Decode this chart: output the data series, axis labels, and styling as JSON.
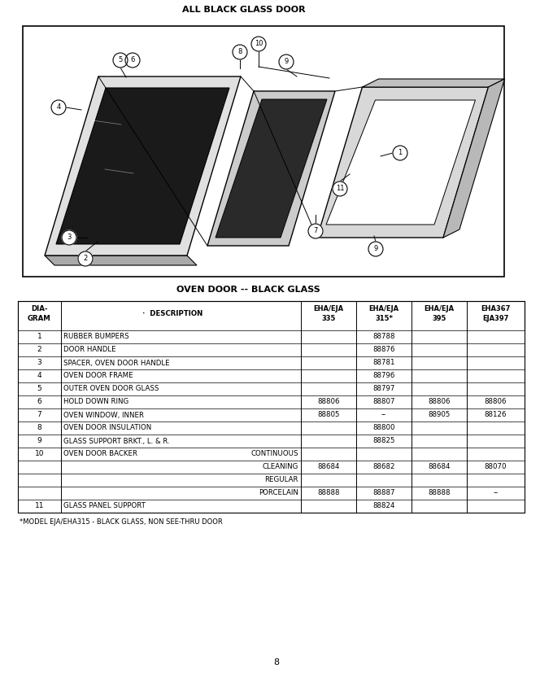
{
  "title_top": "ALL BLACK GLASS DOOR",
  "title_table": "OVEN DOOR -- BLACK GLASS",
  "page_number": "8",
  "footnote": "*MODEL EJA/EHA315 - BLACK GLASS, NON SEE-THRU DOOR",
  "table_headers_line1": [
    "DIA-",
    "",
    "EHA/EJA",
    "EHA/EJA",
    "EHA/EJA",
    "EHA367"
  ],
  "table_headers_line2": [
    "GRAM",
    "DESCRIPTION",
    "335",
    "315*",
    "395",
    "EJA397"
  ],
  "table_rows": [
    {
      "num": "1",
      "desc": "RUBBER BUMPERS",
      "sub": "",
      "c335": "",
      "c315": "88788",
      "c395": "",
      "c367": ""
    },
    {
      "num": "2",
      "desc": "DOOR HANDLE",
      "sub": "",
      "c335": "",
      "c315": "88876",
      "c395": "",
      "c367": ""
    },
    {
      "num": "3",
      "desc": "SPACER, OVEN DOOR HANDLE",
      "sub": "",
      "c335": "",
      "c315": "88781",
      "c395": "",
      "c367": ""
    },
    {
      "num": "4",
      "desc": "OVEN DOOR FRAME",
      "sub": "",
      "c335": "",
      "c315": "88796",
      "c395": "",
      "c367": ""
    },
    {
      "num": "5",
      "desc": "OUTER OVEN DOOR GLASS",
      "sub": "",
      "c335": "",
      "c315": "88797",
      "c395": "",
      "c367": ""
    },
    {
      "num": "6",
      "desc": "HOLD DOWN RING",
      "sub": "",
      "c335": "88806",
      "c315": "88807",
      "c395": "88806",
      "c367": "88806"
    },
    {
      "num": "7",
      "desc": "OVEN WINDOW, INNER",
      "sub": "",
      "c335": "88805",
      "c315": "--",
      "c395": "88905",
      "c367": "88126"
    },
    {
      "num": "8",
      "desc": "OVEN DOOR INSULATION",
      "sub": "",
      "c335": "",
      "c315": "88800",
      "c395": "",
      "c367": ""
    },
    {
      "num": "9",
      "desc": "GLASS SUPPORT BRKT., L. & R.",
      "sub": "",
      "c335": "",
      "c315": "88825",
      "c395": "",
      "c367": ""
    },
    {
      "num": "10",
      "desc": "OVEN DOOR BACKER",
      "sub": "CONTINUOUS",
      "c335": "",
      "c315": "",
      "c395": "",
      "c367": ""
    },
    {
      "num": "",
      "desc": "",
      "sub": "CLEANING",
      "c335": "88684",
      "c315": "88682",
      "c395": "88684",
      "c367": "88070"
    },
    {
      "num": "",
      "desc": "",
      "sub": "REGULAR",
      "c335": "",
      "c315": "",
      "c395": "",
      "c367": ""
    },
    {
      "num": "",
      "desc": "",
      "sub": "PORCELAIN",
      "c335": "88888",
      "c315": "88887",
      "c395": "88888",
      "c367": "--"
    },
    {
      "num": "11",
      "desc": "GLASS PANEL SUPPORT",
      "sub": "",
      "c335": "",
      "c315": "88824",
      "c395": "",
      "c367": ""
    }
  ],
  "bg_color": "#ffffff",
  "text_color": "#000000"
}
